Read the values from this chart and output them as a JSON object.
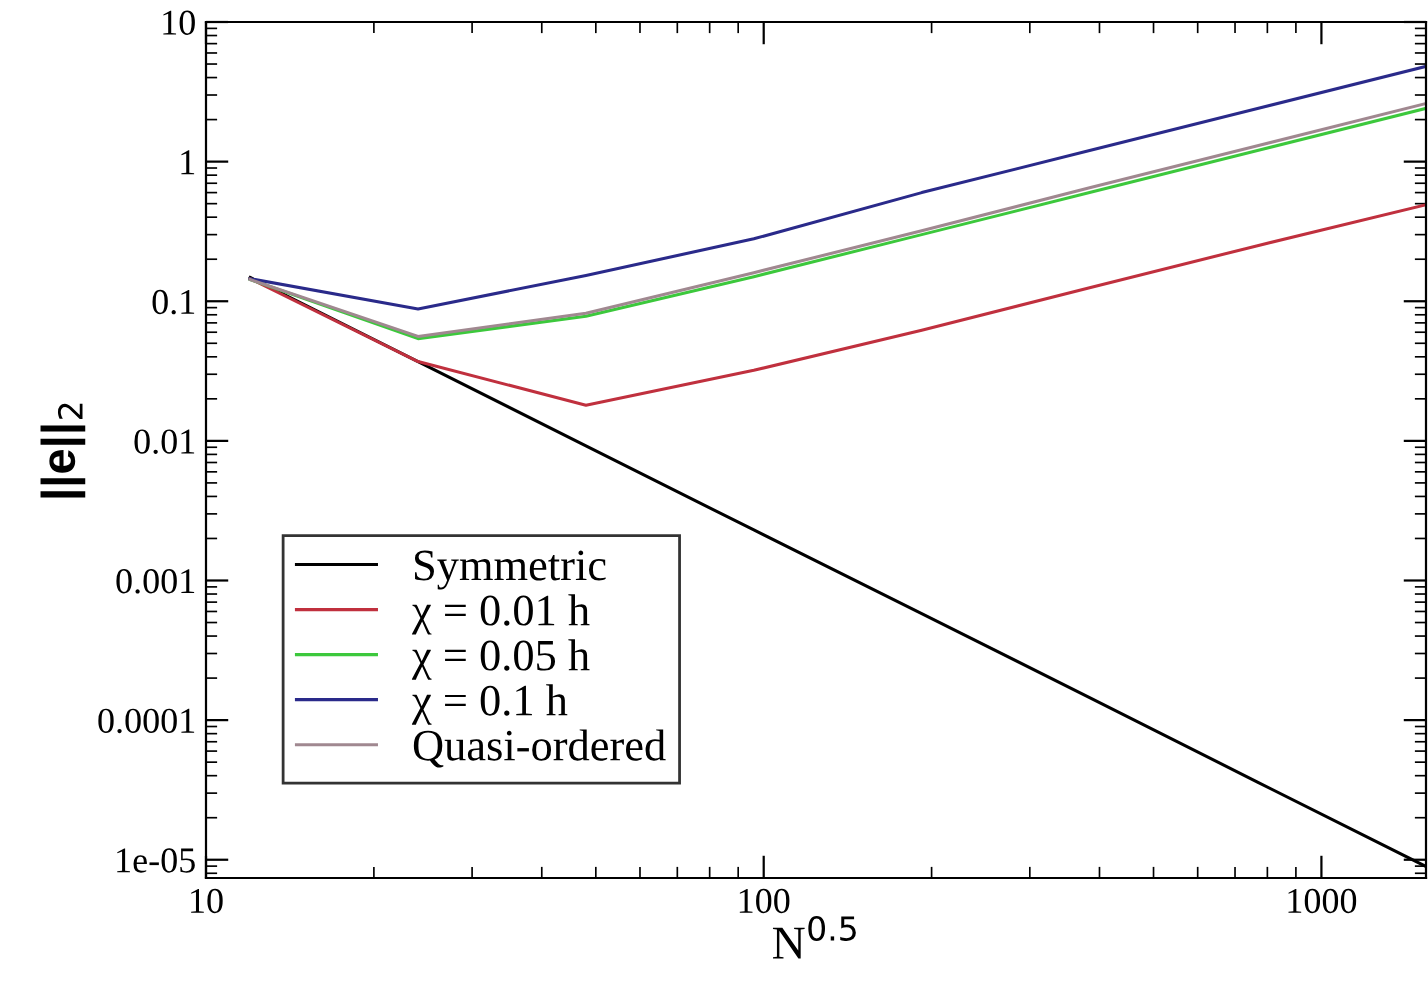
{
  "chart_data": {
    "type": "line",
    "xlabel": "N$^{0.5}$",
    "ylabel": "||e||$_{2}$",
    "x": [
      12,
      24,
      48,
      96,
      192,
      384,
      768,
      1536
    ],
    "series": [
      {
        "name": "Symmetric",
        "color": "#000000",
        "values": [
          0.148,
          0.037,
          0.0092,
          0.0023,
          0.00058,
          0.000145,
          3.6e-05,
          9e-06
        ]
      },
      {
        "name": "χ = 0.01 h",
        "color": "#c0303e",
        "values": [
          0.145,
          0.037,
          0.018,
          0.032,
          0.062,
          0.125,
          0.25,
          0.49
        ]
      },
      {
        "name": "χ = 0.05 h",
        "color": "#3cc83c",
        "values": [
          0.143,
          0.054,
          0.078,
          0.15,
          0.3,
          0.6,
          1.2,
          2.4
        ]
      },
      {
        "name": "χ = 0.1 h",
        "color": "#2a2a8a",
        "values": [
          0.145,
          0.088,
          0.153,
          0.28,
          0.6,
          1.2,
          2.4,
          4.8
        ]
      },
      {
        "name": "Quasi-ordered",
        "color": "#a08890",
        "values": [
          0.143,
          0.056,
          0.082,
          0.16,
          0.32,
          0.65,
          1.3,
          2.6
        ]
      }
    ],
    "log": "xy",
    "xlim": [
      10,
      1540
    ],
    "ylim": [
      7.4e-06,
      10
    ],
    "xticks": [
      10,
      100,
      1000
    ],
    "yticks": [
      1e-05,
      0.0001,
      0.001,
      0.01,
      0.1,
      1,
      10
    ],
    "grid": false,
    "legend": "bottom left",
    "marker": "none",
    "line_style": "solid"
  }
}
